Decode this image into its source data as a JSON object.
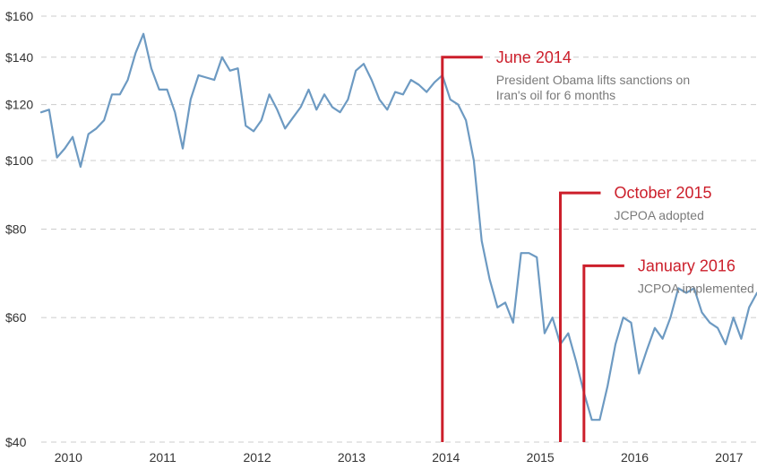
{
  "colors": {
    "series": "#6d9ac2",
    "annotation": "#cc1f2b",
    "grid": "#cccccc",
    "annotation_text": "#7a7a7a"
  },
  "chart_data": {
    "type": "line",
    "title": "",
    "xlabel": "",
    "ylabel": "",
    "y_scale": "log",
    "ylim": [
      40,
      160
    ],
    "xlim": [
      "2009-10",
      "2017-05"
    ],
    "grid": true,
    "y_ticks": [
      "$40",
      "$60",
      "$80",
      "$100",
      "$120",
      "$140",
      "$160"
    ],
    "y_tick_values": [
      40,
      60,
      80,
      100,
      120,
      140,
      160
    ],
    "x_ticks": [
      "2010",
      "2011",
      "2012",
      "2013",
      "2014",
      "2015",
      "2016",
      "2017"
    ],
    "x_tick_dates": [
      "2010-01",
      "2011-01",
      "2012-01",
      "2013-01",
      "2014-01",
      "2015-01",
      "2016-01",
      "2017-01"
    ],
    "series": [
      {
        "x": [
          "2009-10",
          "2009-11",
          "2009-12",
          "2010-01",
          "2010-02",
          "2010-03",
          "2010-04",
          "2010-05",
          "2010-06",
          "2010-07",
          "2010-08",
          "2010-09",
          "2010-10",
          "2010-11",
          "2010-12",
          "2011-01",
          "2011-02",
          "2011-03",
          "2011-04",
          "2011-05",
          "2011-06",
          "2011-07",
          "2011-08",
          "2011-09",
          "2011-10",
          "2011-11",
          "2011-12",
          "2012-01",
          "2012-02",
          "2012-03",
          "2012-04",
          "2012-05",
          "2012-06",
          "2012-07",
          "2012-08",
          "2012-09",
          "2012-10",
          "2012-11",
          "2012-12",
          "2013-01",
          "2013-02",
          "2013-03",
          "2013-04",
          "2013-05",
          "2013-06",
          "2013-07",
          "2013-08",
          "2013-09",
          "2013-10",
          "2013-11",
          "2013-12",
          "2014-01",
          "2014-02",
          "2014-03",
          "2014-04",
          "2014-05",
          "2014-06",
          "2014-07",
          "2014-08",
          "2014-09",
          "2014-10",
          "2014-11",
          "2014-12",
          "2015-01",
          "2015-02",
          "2015-03",
          "2015-04",
          "2015-05",
          "2015-06",
          "2015-07",
          "2015-08",
          "2015-09",
          "2015-10",
          "2015-11",
          "2015-12",
          "2016-01",
          "2016-02",
          "2016-03",
          "2016-04",
          "2016-05",
          "2016-06",
          "2016-07",
          "2016-08",
          "2016-09",
          "2016-10",
          "2016-11",
          "2016-12",
          "2017-01",
          "2017-02",
          "2017-03",
          "2017-04",
          "2017-05"
        ],
        "values": [
          117,
          118,
          101,
          104,
          108,
          98,
          109,
          111,
          114,
          124,
          124,
          130,
          142,
          151,
          135,
          126,
          126,
          117,
          104,
          122,
          132,
          131,
          130,
          140,
          134,
          135,
          112,
          110,
          114,
          124,
          118,
          111,
          115,
          119,
          126,
          118,
          124,
          119,
          117,
          122,
          134,
          137,
          130,
          122,
          118,
          125,
          124,
          130,
          128,
          125,
          129,
          132,
          122,
          120,
          114,
          100,
          77,
          68,
          62,
          63,
          59,
          74,
          74,
          73,
          57,
          60,
          55,
          57,
          52,
          47,
          43,
          43,
          48,
          55,
          60,
          59,
          50,
          54,
          58,
          56,
          60,
          66,
          65,
          66,
          61,
          59,
          58,
          55,
          60,
          56,
          62,
          65
        ]
      }
    ],
    "annotations": [
      {
        "date": "2014-01",
        "value": 140,
        "title": "June 2014",
        "description_lines": [
          "President Obama lifts sanctions on",
          "Iran's oil for 6 months"
        ]
      },
      {
        "date": "2015-04",
        "value": 90,
        "title": "October 2015",
        "description_lines": [
          "JCPOA adopted"
        ]
      },
      {
        "date": "2015-07",
        "value": 71,
        "title": "January 2016",
        "description_lines": [
          "JCPOA implemented"
        ]
      }
    ]
  }
}
